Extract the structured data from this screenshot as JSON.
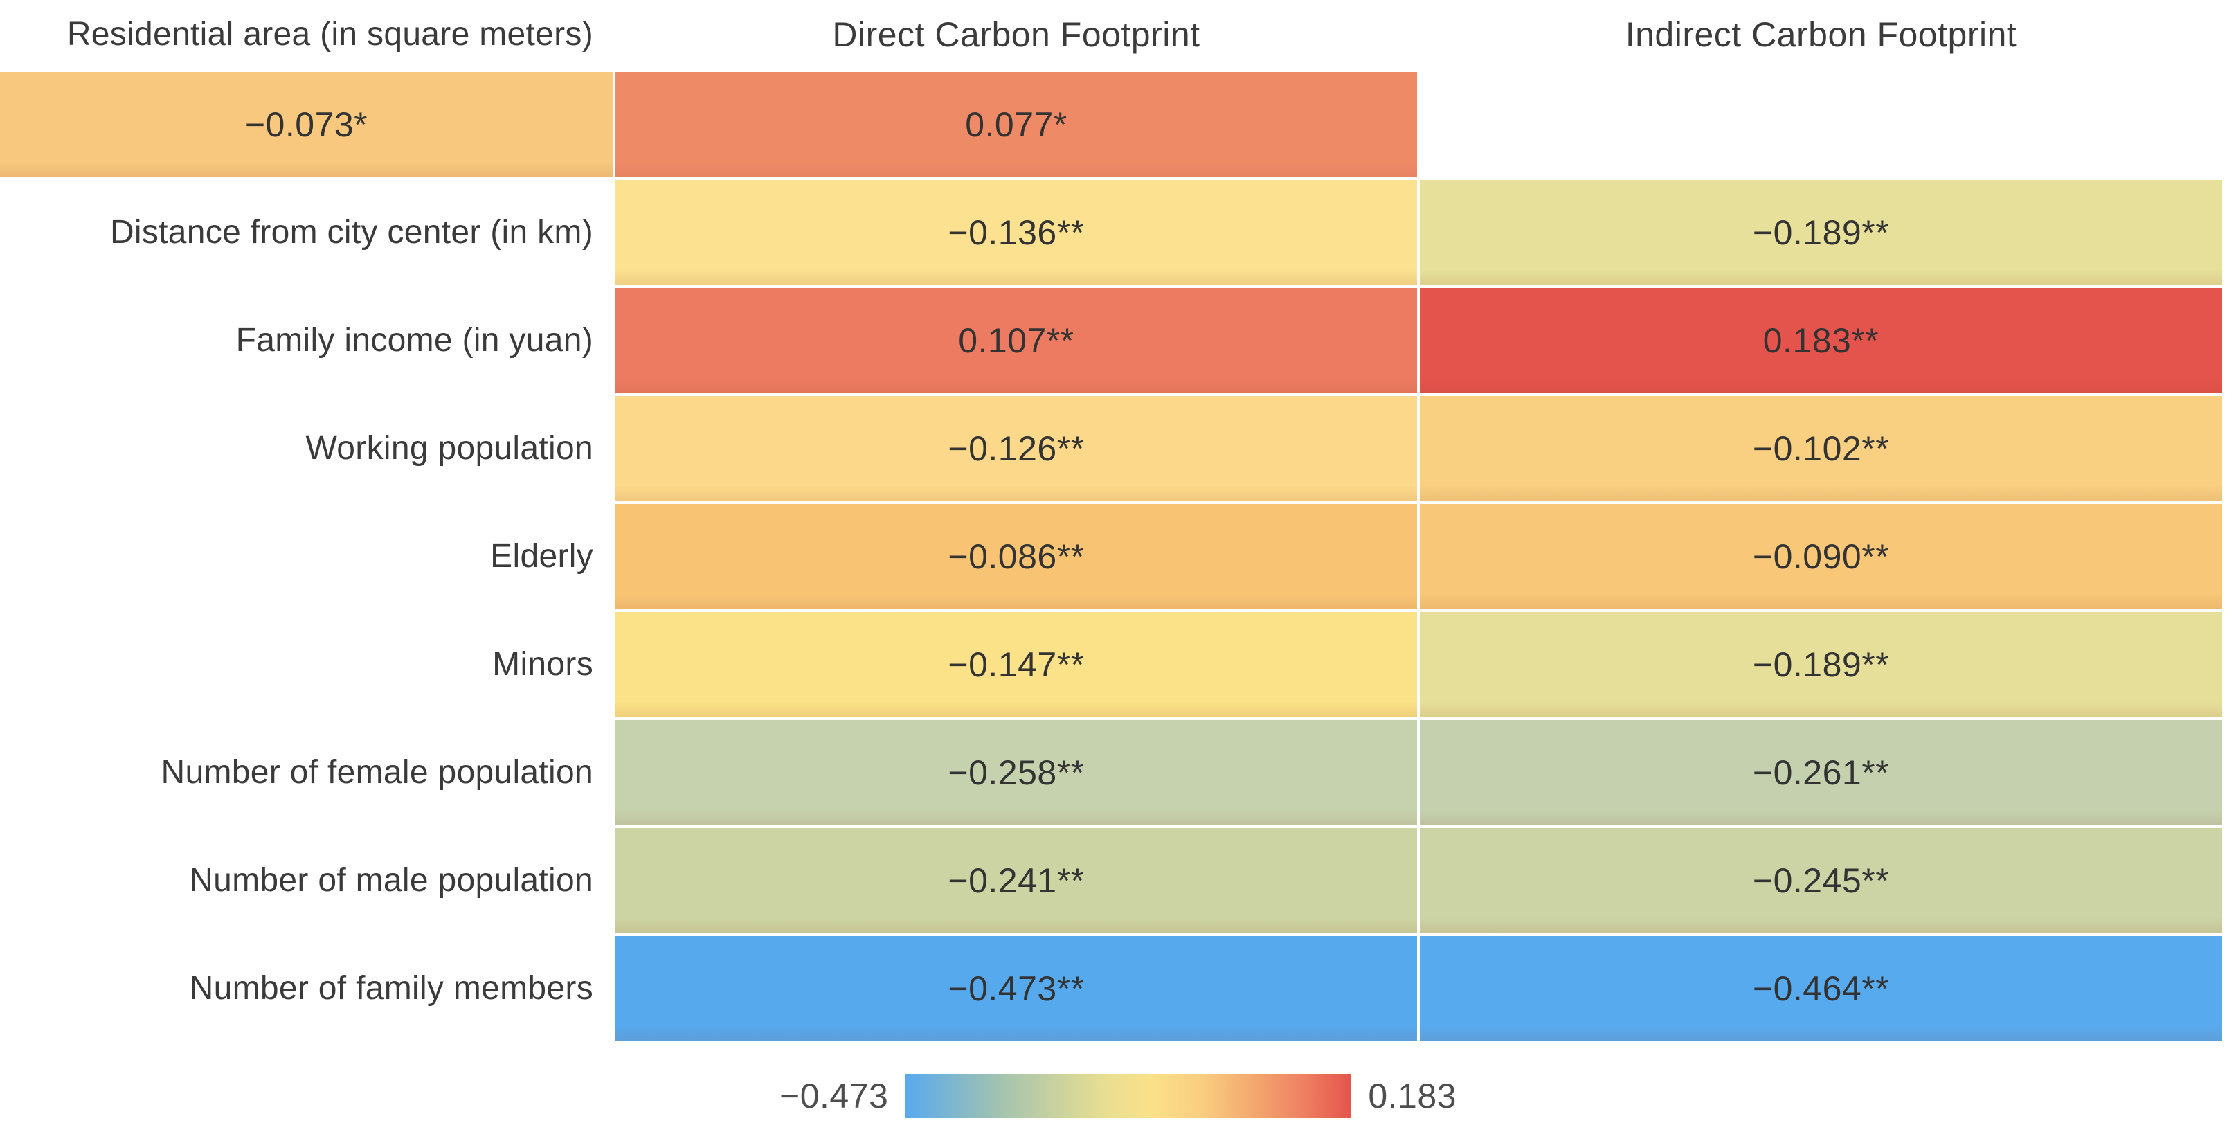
{
  "chart_data": {
    "type": "heatmap",
    "column_headers": [
      "Direct Carbon Footprint",
      "Indirect Carbon Footprint"
    ],
    "rows": [
      {
        "label": "Residential area (in square meters)",
        "cells": [
          {
            "text": "−0.073*",
            "value": -0.073,
            "color": "#f8c87e"
          },
          {
            "text": "0.077*",
            "value": 0.077,
            "color": "#ef8a67"
          }
        ]
      },
      {
        "label": "Distance from city center (in km)",
        "cells": [
          {
            "text": "−0.136**",
            "value": -0.136,
            "color": "#fce190"
          },
          {
            "text": "−0.189**",
            "value": -0.189,
            "color": "#e6e09a"
          }
        ]
      },
      {
        "label": "Family income (in yuan)",
        "cells": [
          {
            "text": "0.107**",
            "value": 0.107,
            "color": "#ed7b61"
          },
          {
            "text": "0.183**",
            "value": 0.183,
            "color": "#e4544c"
          }
        ]
      },
      {
        "label": "Working population",
        "cells": [
          {
            "text": "−0.126**",
            "value": -0.126,
            "color": "#fcd98a"
          },
          {
            "text": "−0.102**",
            "value": -0.102,
            "color": "#f9cf81"
          }
        ]
      },
      {
        "label": "Elderly",
        "cells": [
          {
            "text": "−0.086**",
            "value": -0.086,
            "color": "#f8c474"
          },
          {
            "text": "−0.090**",
            "value": -0.09,
            "color": "#f8c777"
          }
        ]
      },
      {
        "label": "Minors",
        "cells": [
          {
            "text": "−0.147**",
            "value": -0.147,
            "color": "#fbe187"
          },
          {
            "text": "−0.189**",
            "value": -0.189,
            "color": "#e5df99"
          }
        ]
      },
      {
        "label": "Number of female population",
        "cells": [
          {
            "text": "−0.258**",
            "value": -0.258,
            "color": "#c6d2ad"
          },
          {
            "text": "−0.261**",
            "value": -0.261,
            "color": "#c5d1ae"
          }
        ]
      },
      {
        "label": "Number of male population",
        "cells": [
          {
            "text": "−0.241**",
            "value": -0.241,
            "color": "#cdd4a3"
          },
          {
            "text": "−0.245**",
            "value": -0.245,
            "color": "#ccd3a5"
          }
        ]
      },
      {
        "label": "Number of family members",
        "cells": [
          {
            "text": "−0.473**",
            "value": -0.473,
            "color": "#57a9ee"
          },
          {
            "text": "−0.464**",
            "value": -0.464,
            "color": "#58aaee"
          }
        ]
      }
    ],
    "colorbar": {
      "min": -0.473,
      "max": 0.183,
      "min_label": "−0.473",
      "max_label": "0.183",
      "orientation": "horizontal",
      "gradient_stops": [
        "#57a9ee",
        "#7fb7cd",
        "#a6c4ae",
        "#c8d1a0",
        "#e7de92",
        "#fbe189",
        "#f9cd7f",
        "#f3a96f",
        "#ee8263",
        "#e4544c"
      ]
    }
  }
}
